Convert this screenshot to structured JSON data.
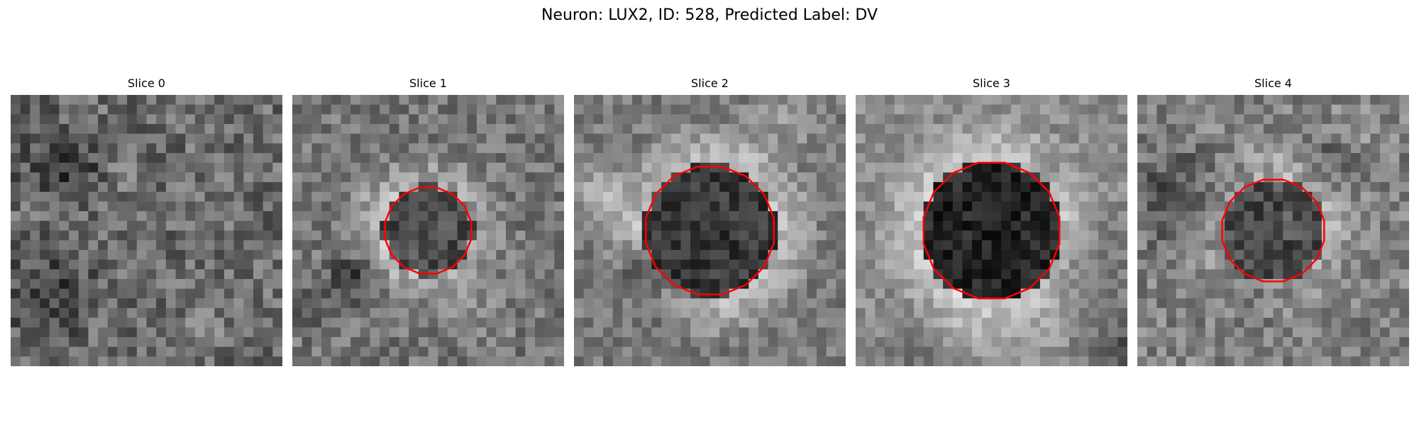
{
  "figure": {
    "title": "Neuron: LUX2, ID: 528, Predicted Label: DV"
  },
  "colors": {
    "contour": "#ff0000",
    "background": "#ffffff"
  },
  "image": {
    "grid_size": 28,
    "colormap": "gray"
  },
  "panels": [
    {
      "title": "Slice 0",
      "has_contour": false,
      "seed": 11,
      "center_value": 0.47,
      "ring_value": 0.52,
      "bg_value": 0.42,
      "cell_radius": 0.0,
      "noise": 0.34
    },
    {
      "title": "Slice 1",
      "has_contour": true,
      "seed": 23,
      "center_value": 0.3,
      "ring_value": 0.64,
      "bg_value": 0.46,
      "cell_radius": 0.165,
      "noise": 0.28
    },
    {
      "title": "Slice 2",
      "has_contour": true,
      "seed": 37,
      "center_value": 0.22,
      "ring_value": 0.76,
      "bg_value": 0.48,
      "cell_radius": 0.245,
      "noise": 0.24
    },
    {
      "title": "Slice 3",
      "has_contour": true,
      "seed": 41,
      "center_value": 0.14,
      "ring_value": 0.8,
      "bg_value": 0.55,
      "cell_radius": 0.26,
      "noise": 0.22
    },
    {
      "title": "Slice 4",
      "has_contour": true,
      "seed": 53,
      "center_value": 0.3,
      "ring_value": 0.68,
      "bg_value": 0.5,
      "cell_radius": 0.195,
      "noise": 0.3
    }
  ]
}
